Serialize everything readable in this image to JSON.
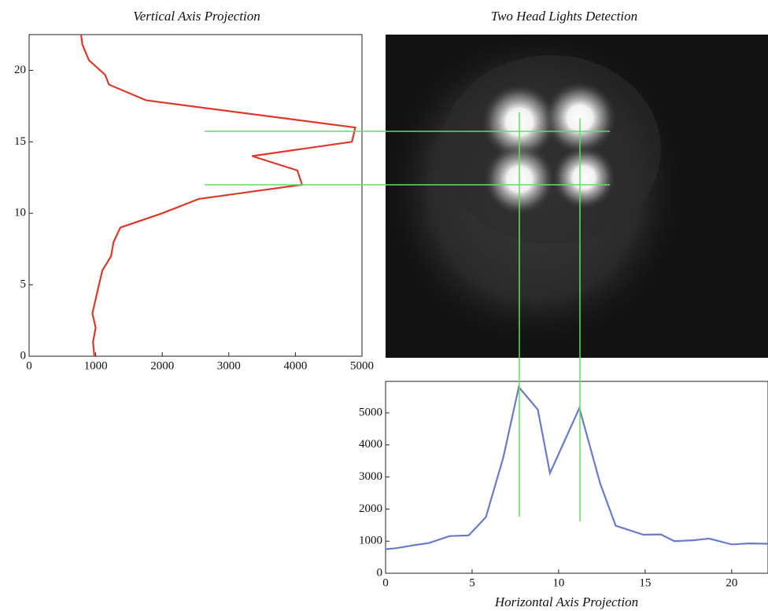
{
  "image_title": "Two Head Lights Detection",
  "chart_data": [
    {
      "type": "line",
      "orientation": "horizontal",
      "title": "Vertical Axis Projection",
      "y": [
        0,
        1,
        2,
        3,
        4,
        5,
        6,
        7,
        8,
        9,
        10,
        11,
        12,
        13,
        14,
        15,
        16,
        17.9,
        19,
        19.7,
        20.7,
        21.8,
        22.5
      ],
      "values": [
        980,
        960,
        1000,
        950,
        1000,
        1050,
        1100,
        1230,
        1270,
        1370,
        2000,
        2550,
        4100,
        4030,
        3350,
        4850,
        4900,
        1760,
        1200,
        1140,
        900,
        800,
        780
      ],
      "color": "#d93a2b",
      "xlim": [
        0,
        5000
      ],
      "xticks": [
        0,
        1000,
        2000,
        3000,
        4000,
        5000
      ],
      "ylim": [
        0,
        22.5
      ],
      "yticks": [
        0,
        5,
        10,
        15,
        20
      ]
    },
    {
      "type": "line",
      "title": "Horizontal Axis Projection",
      "x": [
        0,
        0.6,
        1.7,
        2.5,
        3.7,
        4.8,
        5.8,
        6.8,
        7.7,
        8.8,
        9.5,
        11.2,
        12.4,
        13.3,
        14.9,
        15.9,
        16.7,
        17.8,
        18.7,
        20,
        21,
        22.1
      ],
      "values": [
        750,
        780,
        880,
        940,
        1160,
        1180,
        1750,
        3600,
        5800,
        5100,
        3120,
        5150,
        2800,
        1480,
        1200,
        1210,
        1000,
        1030,
        1080,
        900,
        930,
        920
      ],
      "color": "#6b7cc7",
      "xlim": [
        0,
        22.1
      ],
      "xticks": [
        0,
        5,
        10,
        15,
        20
      ],
      "ylim": [
        0,
        5980
      ],
      "yticks": [
        0,
        1000,
        2000,
        3000,
        4000,
        5000
      ]
    }
  ]
}
